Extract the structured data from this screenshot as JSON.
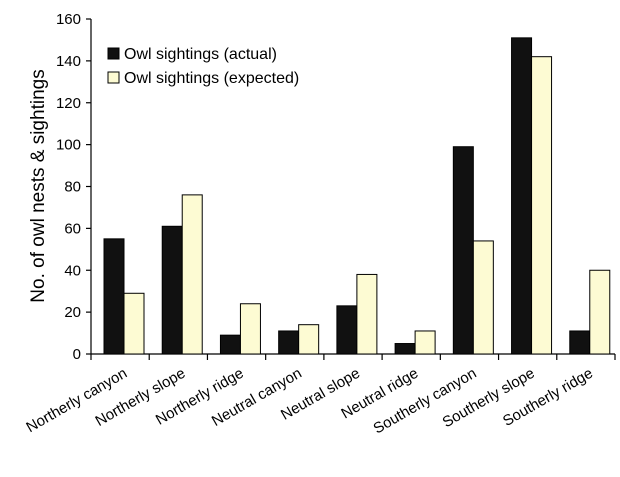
{
  "chart_data": {
    "type": "bar",
    "title": "",
    "xlabel": "",
    "ylabel": "No. of owl nests & sightings",
    "ylim": [
      0,
      160
    ],
    "yticks": [
      0,
      20,
      40,
      60,
      80,
      100,
      120,
      140,
      160
    ],
    "grid": false,
    "legend_position": "top-left",
    "categories": [
      "Northerly canyon",
      "Northerly slope",
      "Northerly ridge",
      "Neutral canyon",
      "Neutral slope",
      "Neutral ridge",
      "Southerly canyon",
      "Southerly slope",
      "Southerly ridge"
    ],
    "series": [
      {
        "name": "Owl sightings (actual)",
        "color": "#111111",
        "values": [
          55,
          61,
          9,
          11,
          23,
          5,
          99,
          151,
          11
        ]
      },
      {
        "name": "Owl sightings (expected)",
        "color": "#fdfbd3",
        "values": [
          29,
          76,
          24,
          14,
          38,
          11,
          54,
          142,
          40
        ]
      }
    ]
  }
}
